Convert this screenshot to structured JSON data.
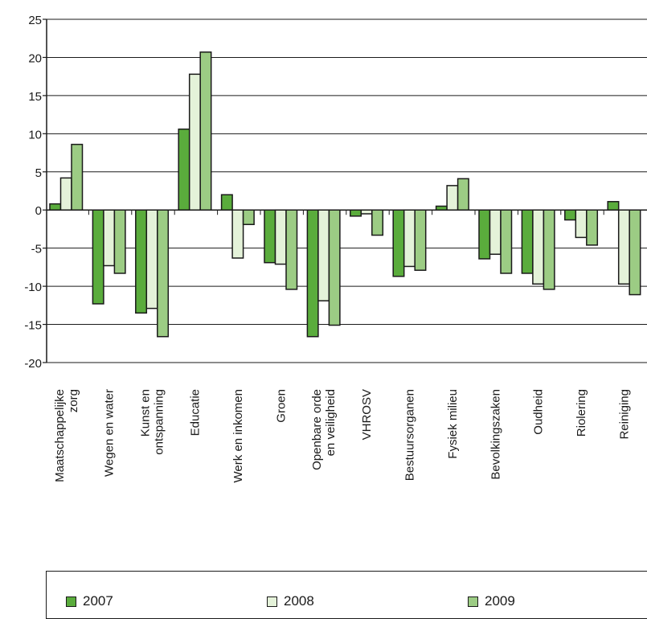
{
  "chart_data": {
    "type": "bar",
    "categories": [
      [
        "Maatschappelijke",
        "zorg"
      ],
      [
        "Wegen en water"
      ],
      [
        "Kunst en",
        "ontspanning"
      ],
      [
        "Educatie"
      ],
      [
        "Werk en inkomen"
      ],
      [
        "Groen"
      ],
      [
        "Openbare orde",
        "en veiligheid"
      ],
      [
        "VHROSV"
      ],
      [
        "Bestuursorganen"
      ],
      [
        "Fysiek milieu"
      ],
      [
        "Bevolkingszaken"
      ],
      [
        "Oudheid"
      ],
      [
        "Riolering"
      ],
      [
        "Reiniging"
      ]
    ],
    "series": [
      {
        "name": "2007",
        "color": "#5aac3c",
        "values": [
          0.8,
          -12.3,
          -13.5,
          10.6,
          2.0,
          -6.9,
          -16.6,
          -0.8,
          -8.7,
          0.5,
          -6.4,
          -8.3,
          -1.3,
          1.1
        ]
      },
      {
        "name": "2008",
        "color": "#e4f2d9",
        "values": [
          4.2,
          -7.3,
          -12.9,
          17.8,
          -6.3,
          -7.1,
          -11.9,
          -0.5,
          -7.4,
          3.2,
          -5.8,
          -9.7,
          -3.6,
          -9.7
        ]
      },
      {
        "name": "2009",
        "color": "#9ccc84",
        "values": [
          8.6,
          -8.3,
          -16.6,
          20.7,
          -1.9,
          -10.4,
          -15.1,
          -3.3,
          -7.9,
          4.1,
          -8.3,
          -10.4,
          -4.6,
          -11.1
        ]
      }
    ],
    "ylim": [
      -20,
      25
    ],
    "yticks": [
      -20,
      -15,
      -10,
      -5,
      0,
      5,
      10,
      15,
      20,
      25
    ],
    "grid": true,
    "legend_position": "bottom"
  }
}
